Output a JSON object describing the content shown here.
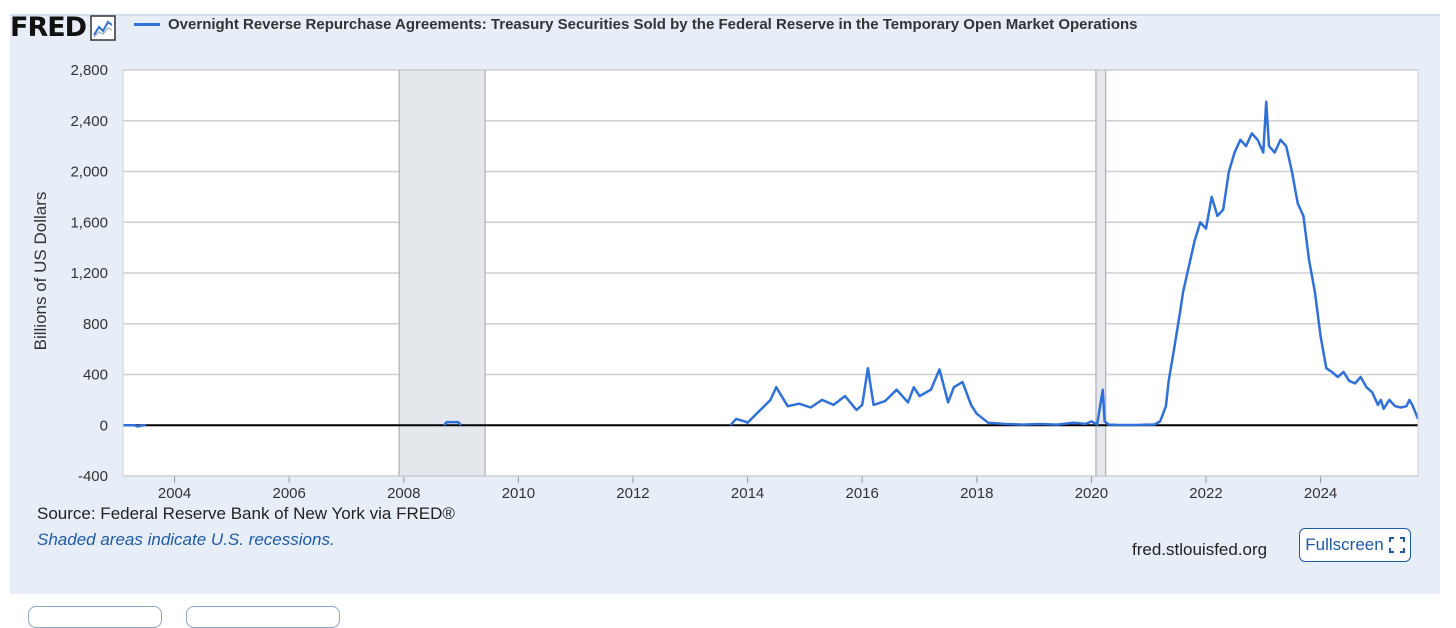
{
  "header": {
    "logo_text": "FRED",
    "logo_icon": "trend-chart-icon",
    "series_title": "Overnight Reverse Repurchase Agreements: Treasury Securities Sold by the Federal Reserve in the Temporary Open Market Operations",
    "series_color": "#2f71d9"
  },
  "footer": {
    "source": "Source: Federal Reserve Bank of New York via FRED®",
    "recession_note": "Shaded areas indicate U.S. recessions.",
    "site": "fred.stlouisfed.org",
    "fullscreen_label": "Fullscreen",
    "fullscreen_icon": "expand-icon"
  },
  "chart_data": {
    "type": "line",
    "title": "Overnight Reverse Repurchase Agreements: Treasury Securities Sold by the Federal Reserve in the Temporary Open Market Operations",
    "xlabel": "",
    "ylabel": "Billions of US Dollars",
    "xlim": [
      2003.1,
      2025.7
    ],
    "ylim": [
      -400,
      2800
    ],
    "x_ticks": [
      2004,
      2006,
      2008,
      2010,
      2012,
      2014,
      2016,
      2018,
      2020,
      2022,
      2024
    ],
    "y_ticks": [
      -400,
      0,
      400,
      800,
      1200,
      1600,
      2000,
      2400,
      2800
    ],
    "y_tick_labels": [
      "-400",
      "0",
      "400",
      "800",
      "1,200",
      "1,600",
      "2,000",
      "2,400",
      "2,800"
    ],
    "grid": true,
    "recessions": [
      [
        2007.92,
        2009.42
      ],
      [
        2020.08,
        2020.25
      ]
    ],
    "recession_color": "#e4e7eb",
    "series": [
      {
        "name": "Overnight Reverse Repurchase Agreements",
        "color": "#2f71d9",
        "x": [
          2003.1,
          2003.3,
          2003.35,
          2003.45,
          2003.5,
          2008.7,
          2008.75,
          2008.95,
          2009.0,
          2013.7,
          2013.8,
          2013.95,
          2014.0,
          2014.2,
          2014.4,
          2014.5,
          2014.7,
          2014.9,
          2015.1,
          2015.3,
          2015.5,
          2015.7,
          2015.9,
          2016.0,
          2016.1,
          2016.2,
          2016.4,
          2016.6,
          2016.8,
          2016.9,
          2017.0,
          2017.2,
          2017.35,
          2017.5,
          2017.6,
          2017.75,
          2017.9,
          2018.0,
          2018.2,
          2018.5,
          2018.8,
          2019.1,
          2019.4,
          2019.7,
          2019.9,
          2020.0,
          2020.1,
          2020.2,
          2020.23,
          2020.3,
          2020.5,
          2020.8,
          2021.0,
          2021.1,
          2021.2,
          2021.3,
          2021.35,
          2021.45,
          2021.55,
          2021.6,
          2021.7,
          2021.8,
          2021.9,
          2022.0,
          2022.1,
          2022.2,
          2022.3,
          2022.4,
          2022.5,
          2022.6,
          2022.7,
          2022.8,
          2022.9,
          2023.0,
          2023.05,
          2023.1,
          2023.2,
          2023.3,
          2023.4,
          2023.5,
          2023.6,
          2023.7,
          2023.8,
          2023.9,
          2024.0,
          2024.1,
          2024.2,
          2024.3,
          2024.4,
          2024.5,
          2024.6,
          2024.7,
          2024.8,
          2024.9,
          2025.0,
          2025.05,
          2025.1,
          2025.2,
          2025.3,
          2025.4,
          2025.5,
          2025.55,
          2025.6,
          2025.7
        ],
        "y": [
          0,
          0,
          -10,
          0,
          0,
          0,
          25,
          25,
          0,
          0,
          50,
          30,
          20,
          110,
          200,
          300,
          150,
          170,
          140,
          200,
          160,
          230,
          120,
          160,
          450,
          160,
          190,
          280,
          180,
          300,
          230,
          280,
          440,
          180,
          300,
          340,
          160,
          90,
          20,
          10,
          5,
          10,
          5,
          20,
          10,
          30,
          5,
          280,
          30,
          5,
          2,
          2,
          5,
          5,
          30,
          150,
          350,
          620,
          900,
          1050,
          1250,
          1450,
          1600,
          1550,
          1800,
          1650,
          1700,
          2000,
          2150,
          2250,
          2200,
          2300,
          2250,
          2150,
          2550,
          2200,
          2150,
          2250,
          2200,
          2000,
          1750,
          1650,
          1300,
          1050,
          700,
          450,
          420,
          380,
          420,
          350,
          330,
          380,
          300,
          260,
          160,
          200,
          130,
          200,
          150,
          140,
          150,
          200,
          160,
          50
        ]
      }
    ]
  }
}
